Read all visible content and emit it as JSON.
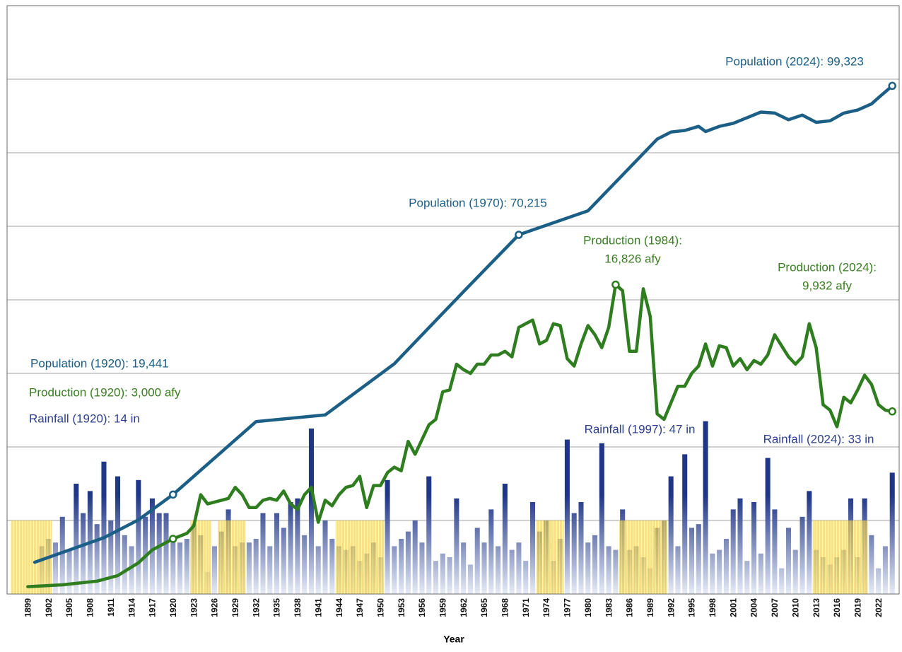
{
  "chart_data": {
    "type": "bar",
    "xlabel": "Year",
    "xlim": [
      1896,
      2025
    ],
    "xticks": [
      1899,
      1902,
      1905,
      1908,
      1911,
      1914,
      1917,
      1920,
      1923,
      1926,
      1929,
      1932,
      1935,
      1938,
      1941,
      1944,
      1947,
      1950,
      1953,
      1956,
      1959,
      1962,
      1965,
      1968,
      1971,
      1974,
      1977,
      1980,
      1983,
      1986,
      1989,
      1992,
      1995,
      1998,
      2001,
      2004,
      2007,
      2010,
      2013,
      2016,
      2019,
      2022
    ],
    "ylim": [
      0,
      160
    ],
    "yticks": [
      0,
      20,
      40,
      60,
      80,
      100,
      120,
      140,
      160
    ],
    "grid": true,
    "y2lim": [
      0,
      115000
    ],
    "y3lim": [
      0,
      32000
    ],
    "series": [
      {
        "type": "bar",
        "color": "#1f3585",
        "x": [
          1901,
          1902,
          1903,
          1904,
          1905,
          1906,
          1907,
          1908,
          1909,
          1910,
          1911,
          1912,
          1913,
          1914,
          1915,
          1916,
          1917,
          1918,
          1919,
          1920,
          1921,
          1922,
          1923,
          1924,
          1925,
          1926,
          1927,
          1928,
          1929,
          1930,
          1931,
          1932,
          1933,
          1934,
          1935,
          1936,
          1937,
          1938,
          1939,
          1940,
          1941,
          1942,
          1943,
          1944,
          1945,
          1946,
          1947,
          1948,
          1949,
          1950,
          1951,
          1952,
          1953,
          1954,
          1955,
          1956,
          1957,
          1958,
          1959,
          1960,
          1961,
          1962,
          1963,
          1964,
          1965,
          1966,
          1967,
          1968,
          1969,
          1970,
          1971,
          1972,
          1973,
          1974,
          1975,
          1976,
          1977,
          1978,
          1979,
          1980,
          1981,
          1982,
          1983,
          1984,
          1985,
          1986,
          1987,
          1988,
          1989,
          1990,
          1991,
          1992,
          1993,
          1994,
          1995,
          1996,
          1997,
          1998,
          1999,
          2000,
          2001,
          2002,
          2003,
          2004,
          2005,
          2006,
          2007,
          2008,
          2009,
          2010,
          2011,
          2012,
          2013,
          2014,
          2015,
          2016,
          2017,
          2018,
          2019,
          2020,
          2021,
          2022,
          2023,
          2024
        ],
        "values": [
          13,
          15,
          14,
          21,
          12,
          30,
          22,
          28,
          19,
          36,
          20,
          32,
          16,
          13,
          31,
          21,
          26,
          22,
          22,
          14,
          14,
          15,
          19,
          16,
          6,
          13,
          17,
          23,
          13,
          14,
          14,
          15,
          22,
          13,
          22,
          18,
          25,
          26,
          16,
          45,
          13,
          20,
          15,
          13,
          12,
          13,
          9,
          11,
          14,
          10,
          31,
          13,
          15,
          17,
          20,
          14,
          32,
          9,
          11,
          10,
          26,
          14,
          8,
          18,
          14,
          23,
          13,
          30,
          12,
          14,
          9,
          25,
          17,
          20,
          9,
          15,
          42,
          22,
          25,
          14,
          16,
          41,
          13,
          12,
          23,
          12,
          13,
          10,
          7,
          18,
          20,
          32,
          13,
          38,
          18,
          19,
          47,
          11,
          12,
          15,
          23,
          26,
          9,
          25,
          11,
          37,
          23,
          7,
          18,
          12,
          21,
          28,
          12,
          10,
          8,
          10,
          12,
          26,
          10,
          26,
          16,
          7,
          13,
          33
        ]
      },
      {
        "type": "line",
        "axis": "y2",
        "color": "#1b5e86",
        "x": [
          1900,
          1910,
          1915,
          1920,
          1932,
          1942,
          1952,
          1962,
          1970,
          1980,
          1990,
          1992,
          1994,
          1996,
          1997,
          1999,
          2001,
          2003,
          2005,
          2007,
          2009,
          2011,
          2013,
          2015,
          2017,
          2019,
          2021,
          2022,
          2024
        ],
        "values": [
          6200,
          11000,
          14500,
          19441,
          33700,
          35000,
          45000,
          59100,
          70215,
          74900,
          88900,
          90300,
          90600,
          91400,
          90400,
          91400,
          92000,
          93100,
          94200,
          94000,
          92700,
          93600,
          92200,
          92500,
          94000,
          94600,
          95800,
          97000,
          99323
        ],
        "markers_at": [
          1920,
          1970,
          2024
        ]
      },
      {
        "type": "line",
        "axis": "y3",
        "color": "#2e7d1e",
        "x": [
          1899,
          1904,
          1909,
          1912,
          1915,
          1917,
          1920,
          1922,
          1923,
          1924,
          1925,
          1927,
          1928,
          1929,
          1930,
          1931,
          1932,
          1933,
          1934,
          1935,
          1936,
          1937,
          1938,
          1939,
          1940,
          1941,
          1942,
          1943,
          1944,
          1945,
          1946,
          1947,
          1948,
          1949,
          1950,
          1951,
          1952,
          1953,
          1954,
          1955,
          1956,
          1957,
          1958,
          1959,
          1960,
          1961,
          1962,
          1963,
          1964,
          1965,
          1966,
          1967,
          1968,
          1969,
          1970,
          1971,
          1972,
          1973,
          1974,
          1975,
          1976,
          1977,
          1978,
          1979,
          1980,
          1981,
          1982,
          1983,
          1984,
          1985,
          1986,
          1987,
          1988,
          1989,
          1990,
          1991,
          1992,
          1993,
          1994,
          1995,
          1996,
          1997,
          1998,
          1999,
          2000,
          2001,
          2002,
          2003,
          2004,
          2005,
          2006,
          2007,
          2008,
          2009,
          2010,
          2011,
          2012,
          2013,
          2014,
          2015,
          2016,
          2017,
          2018,
          2019,
          2020,
          2021,
          2022,
          2023,
          2024
        ],
        "values": [
          400,
          500,
          700,
          1000,
          1700,
          2400,
          3000,
          3300,
          3700,
          5400,
          4900,
          5100,
          5200,
          5800,
          5400,
          4700,
          4700,
          5100,
          5200,
          5100,
          5600,
          4900,
          4600,
          5400,
          5800,
          3900,
          5100,
          4800,
          5400,
          5800,
          5900,
          6400,
          4700,
          5900,
          5900,
          6600,
          6900,
          6700,
          8300,
          7600,
          8400,
          9200,
          9500,
          11000,
          11100,
          12500,
          12200,
          12000,
          12500,
          12500,
          13000,
          13000,
          13200,
          12900,
          14500,
          14700,
          14900,
          13600,
          13800,
          14700,
          14600,
          12800,
          12400,
          13600,
          14600,
          14100,
          13400,
          14500,
          16826,
          16500,
          13200,
          13200,
          16600,
          15100,
          9800,
          9500,
          10400,
          11300,
          11300,
          12000,
          12400,
          13600,
          12400,
          13500,
          13400,
          12400,
          12800,
          12200,
          12700,
          12500,
          13000,
          14100,
          13500,
          12900,
          12500,
          12900,
          14700,
          13400,
          10300,
          10000,
          9100,
          10700,
          10400,
          11100,
          11900,
          11400,
          10300,
          10000,
          9932
        ],
        "markers_at": [
          1920,
          1984,
          2024
        ]
      }
    ],
    "shaded_periods": [
      [
        1897,
        1902
      ],
      [
        1923,
        1925
      ],
      [
        1927,
        1930
      ],
      [
        1944,
        1950
      ],
      [
        1973,
        1976
      ],
      [
        1985,
        1991
      ],
      [
        2013,
        2020
      ]
    ],
    "shade_color": "#f6cf45",
    "annotations": [
      {
        "lines": [
          "Population (2024): 99,323"
        ],
        "color": "#1b5e86"
      },
      {
        "lines": [
          "Population (1970): 70,215"
        ],
        "color": "#1b5e86"
      },
      {
        "lines": [
          "Production (1984):",
          "16,826 afy"
        ],
        "color": "#3a7d23"
      },
      {
        "lines": [
          "Production (2024):",
          "9,932 afy"
        ],
        "color": "#3a7d23"
      },
      {
        "lines": [
          "Population (1920): 19,441"
        ],
        "color": "#1b5e86"
      },
      {
        "lines": [
          "Production (1920): 3,000 afy"
        ],
        "color": "#3a7d23"
      },
      {
        "lines": [
          "Rainfall (1920): 14 in"
        ],
        "color": "#2d3f8e"
      },
      {
        "lines": [
          "Rainfall (1997): 47 in"
        ],
        "color": "#2d3f8e"
      },
      {
        "lines": [
          "Rainfall (2024): 33 in"
        ],
        "color": "#2d3f8e"
      }
    ]
  }
}
